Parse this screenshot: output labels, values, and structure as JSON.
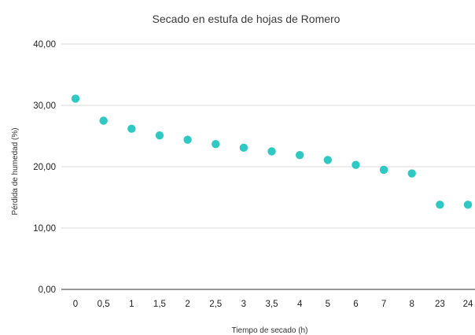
{
  "chart_data": {
    "type": "scatter",
    "title": "Secado en estufa de hojas de Romero",
    "xlabel": "Tiempo de secado (h)",
    "ylabel": "Pérdida de humedad (%)",
    "categories": [
      "0",
      "0,5",
      "1",
      "1,5",
      "2",
      "2,5",
      "3",
      "3,5",
      "4",
      "5",
      "6",
      "7",
      "8",
      "23",
      "24"
    ],
    "values": [
      31.1,
      27.5,
      26.2,
      25.1,
      24.4,
      23.7,
      23.1,
      22.5,
      21.9,
      21.1,
      20.3,
      19.5,
      18.9,
      13.8,
      13.8
    ],
    "ylim": [
      0,
      40
    ],
    "yticks": [
      "0,00",
      "10,00",
      "20,00",
      "30,00",
      "40,00"
    ],
    "grid": true,
    "legend": "none",
    "marker_color": "#2ec9c4",
    "grid_color": "#d8d8d8"
  }
}
